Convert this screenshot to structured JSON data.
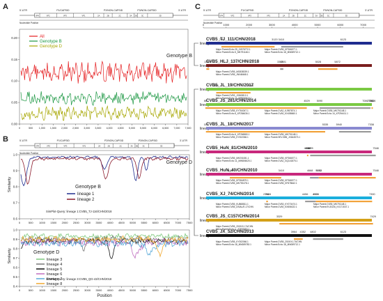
{
  "panels": {
    "A": "A",
    "B": "B",
    "C": "C"
  },
  "genome": {
    "utr5": "5'-UTR",
    "utr3": "3'-UTR",
    "p1": "P1/CAPSID",
    "p2": "P2/NON-CAPSID",
    "p3": "P3/NON-CAPSID",
    "genes": [
      "VP4",
      "VP2",
      "VP3",
      "VP1",
      "2A",
      "2B",
      "2C",
      "3A",
      "3B",
      "3C",
      "3D"
    ],
    "nucleotide_label": "Nucleotide Position"
  },
  "panel_a": {
    "legend": [
      {
        "name": "All",
        "color": "#e41a1c"
      },
      {
        "name": "Genotype B",
        "color": "#1a9641"
      },
      {
        "name": "Genotype D",
        "color": "#a6a600"
      }
    ],
    "y_ticks": [
      "0.00",
      "0.05",
      "0.10",
      "0.15",
      "0.20"
    ],
    "x_ticks": [
      "0",
      "500",
      "1,000",
      "1,500",
      "2,000",
      "2,500",
      "3,000",
      "3,500",
      "4,000",
      "4,500",
      "5,000",
      "5,500",
      "6,000",
      "6,500",
      "7,000",
      "7,500"
    ],
    "xlim": [
      0,
      7500
    ],
    "ylim": [
      0,
      0.22
    ]
  },
  "panel_b_top": {
    "title": "Genotype B",
    "legend": [
      {
        "name": "lineage 1",
        "color": "#1f2d8f"
      },
      {
        "name": "lineage 2",
        "color": "#8b1a2b"
      }
    ],
    "footer": "SimPlot-Query: lineage 1:CVB5_TJ-116/CHN/2018",
    "ylabel": "Similarity",
    "y_ticks": [
      "0.6",
      "0.7",
      "0.8",
      "0.9",
      "1.0"
    ],
    "x_ticks": [
      "0",
      "500",
      "1000",
      "1500",
      "2000",
      "2500",
      "3000",
      "3500",
      "4000",
      "4500",
      "5000",
      "5500",
      "6000",
      "6500",
      "7000",
      "7500"
    ]
  },
  "panel_b_bottom": {
    "title": "Genotype D",
    "legend": [
      {
        "name": "lineage 3",
        "color": "#7fc97f"
      },
      {
        "name": "lineage 4",
        "color": "#777777"
      },
      {
        "name": "lineage 5",
        "color": "#111111"
      },
      {
        "name": "lineage 6",
        "color": "#c06ec0"
      },
      {
        "name": "lineage 7",
        "color": "#59a9d8"
      },
      {
        "name": "lineage 8",
        "color": "#f0a830"
      }
    ],
    "footer": "SimPlot-Query: lineage 3:CVB5_QG-43/CHN/2018",
    "ylabel": "Similarity",
    "xlabel": "Position",
    "y_ticks": [
      "0.4",
      "0.5",
      "0.6",
      "0.7",
      "0.8",
      "0.9",
      "1.0"
    ],
    "x_ticks": [
      "0",
      "500",
      "1000",
      "1500",
      "2000",
      "2500",
      "3000",
      "3500",
      "4000",
      "4500",
      "5000",
      "5500",
      "6000",
      "6500",
      "7000",
      "7500"
    ]
  },
  "panel_c": {
    "x_ticks": [
      "0",
      "1000",
      "2000",
      "3000",
      "4000",
      "5000",
      "6000",
      "7000"
    ],
    "genotype_b_label": "Genotype B",
    "genotype_d_label": "Genotype D",
    "strains": [
      {
        "lineage": "lineage 1",
        "name": "CVB5_TJ_111/CHN/2018",
        "color": "#1f2d8f",
        "bp": [
          "790",
          "3120",
          "3410",
          "6123"
        ],
        "notes": [
          "Major Parent:Echo 25_JX976772.1",
          "Minor Parent:Echo 5_MK791146.1",
          "Major Parent:CVB5_KP266577.1",
          "Minor Parent:Echo 18_MN089712.1"
        ]
      },
      {
        "lineage": "lineage 2",
        "name": "CVB5_HLJ_137/CHN/2018",
        "color": "#7a1e1e",
        "bp": [
          "132",
          "256",
          "3363",
          "3501",
          "5028",
          "5872"
        ],
        "notes": [
          "Major Parent:CVB5_MG838339.1",
          "Minor Parent:CVB5_JN048468.1"
        ]
      },
      {
        "lineage": "lineage 3",
        "name": "CVB5_JL_19/CHN/2017",
        "color": "#7ac943",
        "bp": [
          "563",
          "2066"
        ],
        "notes": [
          "Major Parent:CVB3_JX843810.1",
          "Minor Parent:Echo 11_MW600010.1"
        ]
      },
      {
        "lineage": "lineage 3",
        "name": "CVB5_JS_281/CHN/2014",
        "color": "#7ac943",
        "bp": [
          "88",
          "4529",
          "5090",
          "7320",
          "7362",
          "7086",
          "7414"
        ],
        "notes": [
          "Major Parent:CVB5_KY764047.1",
          "Minor Parent:Echo 6_KP284636.1",
          "Major Parent:CVA2_KJ957874.1",
          "Minor Parent:CVA9_KX458660.1",
          "Major Parent:CVB5_MK791148.1",
          "Minor Parent:Echo 14_KP294411.1"
        ]
      },
      {
        "lineage": "lineage 4",
        "name": "CVB5_JL_18/CHN/2017",
        "color": "#8a8ad0",
        "bp": [
          "114",
          "5335",
          "5940",
          "7338"
        ],
        "notes": [
          "Major Parent:Echo 6_KP266580.1",
          "Minor Parent:CVB5_KY302066.1",
          "Major Parent:CVB5_MK791148.1",
          "Minor Parent:HEV-B96_JX644573.1"
        ]
      },
      {
        "lineage": "lineage 5",
        "name": "CVB5_HuN_81/CHN/2010",
        "color": "#c8287c",
        "bp": [
          "4538",
          "4588",
          "4678",
          "7548"
        ],
        "notes": [
          "Major Parent:CVB5_MH201081.1",
          "Minor Parent:Echo 11_MW806020.1",
          "Major Parent:CVB5_KP266577.1",
          "Minor Parent:CVA2_GQ141875.1"
        ]
      },
      {
        "lineage": "lineage 5",
        "name": "CVB5_HuN_40/CHN/2010",
        "color": "#c8287c",
        "bp": [
          "1160",
          "3410",
          "4668",
          "5052",
          "5053",
          "7548"
        ],
        "notes": [
          "Major Parent:CVB5_KP284879.1",
          "Minor Parent:CVB5_MK792478.1",
          "Major Parent:CVB5_KP266577.1",
          "Minor Parent:CVB5_KF878642.1"
        ]
      },
      {
        "lineage": "lineage 6",
        "name": "CVB5_XJ_74/CHN/2014",
        "color": "#1aaedc",
        "bp": [
          "2754",
          "2828",
          "4456",
          "4920",
          "4924",
          "7390"
        ],
        "notes": [
          "Major Parent:CVB5_KU868811.1",
          "Minor Parent:CVB5_DSIAL/E-17/CHN",
          "Major Parent:CVB3_KY073474.1",
          "Minor Parent:CVA9_KX806022.1",
          "Major Parent:CVB5_MK791148.1",
          "Minor Parent:EV-B106_KX171537.1"
        ]
      },
      {
        "lineage": "lineage 7",
        "name": "CVB5_JS_C157/CHN/2014",
        "color": "#d4a017",
        "bp": [
          "3329",
          "7429"
        ],
        "notes": [
          "Major Parent:CVB5_2019/XJ-74/CHN",
          "Minor Parent:Echo 1_JQ979352.1"
        ]
      },
      {
        "lineage": "lineage 8",
        "name": "CVB5_JX_52/CHN/2013",
        "color": "#111111",
        "bp": [
          "3964",
          "4352",
          "4802",
          "6123"
        ],
        "notes": [
          "Major Parent:CVB5_KY302066.1",
          "Minor Parent:Echo 18_MN089783.1",
          "Major Parent:CVB5_2019/XJ-74/CHN",
          "Minor Parent:Echo 18_MN089712.1"
        ]
      }
    ]
  }
}
